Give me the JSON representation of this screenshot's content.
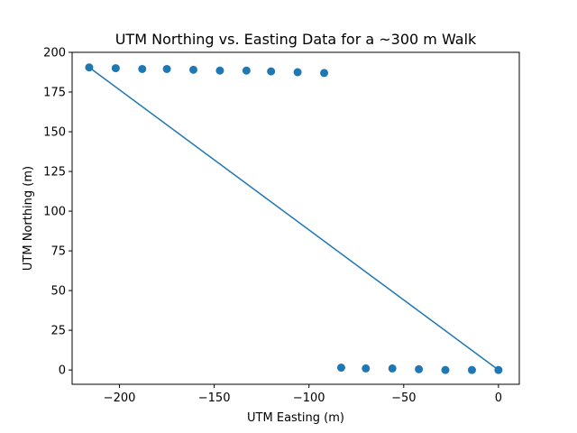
{
  "chart_data": {
    "type": "scatter",
    "title": "UTM Northing vs. Easting Data for a ~300 m Walk",
    "xlabel": "UTM Easting (m)",
    "ylabel": "UTM Northing (m)",
    "xlim": [
      -225,
      11
    ],
    "ylim": [
      -9,
      200
    ],
    "xticks": [
      -200,
      -150,
      -100,
      -50,
      0
    ],
    "yticks": [
      0,
      25,
      50,
      75,
      100,
      125,
      150,
      175,
      200
    ],
    "xtick_labels": [
      "−200",
      "−150",
      "−100",
      "−50",
      "0"
    ],
    "ytick_labels": [
      "0",
      "25",
      "50",
      "75",
      "100",
      "125",
      "150",
      "175",
      "200"
    ],
    "grid": false,
    "marker_color": "#1f77b4",
    "line_color": "#1f77b4",
    "scatter_points": {
      "x": [
        0,
        -14,
        -28,
        -42,
        -56,
        -70,
        -83,
        -92,
        -106,
        -120,
        -133,
        -147,
        -161,
        -175,
        -188,
        -202,
        -216
      ],
      "y": [
        0,
        0,
        0,
        0.5,
        1,
        1,
        1.5,
        187,
        187.5,
        188,
        188.5,
        188.5,
        189,
        189.5,
        189.5,
        190,
        190.5
      ]
    },
    "line": {
      "x": [
        0,
        -216
      ],
      "y": [
        0,
        190.5
      ]
    }
  }
}
